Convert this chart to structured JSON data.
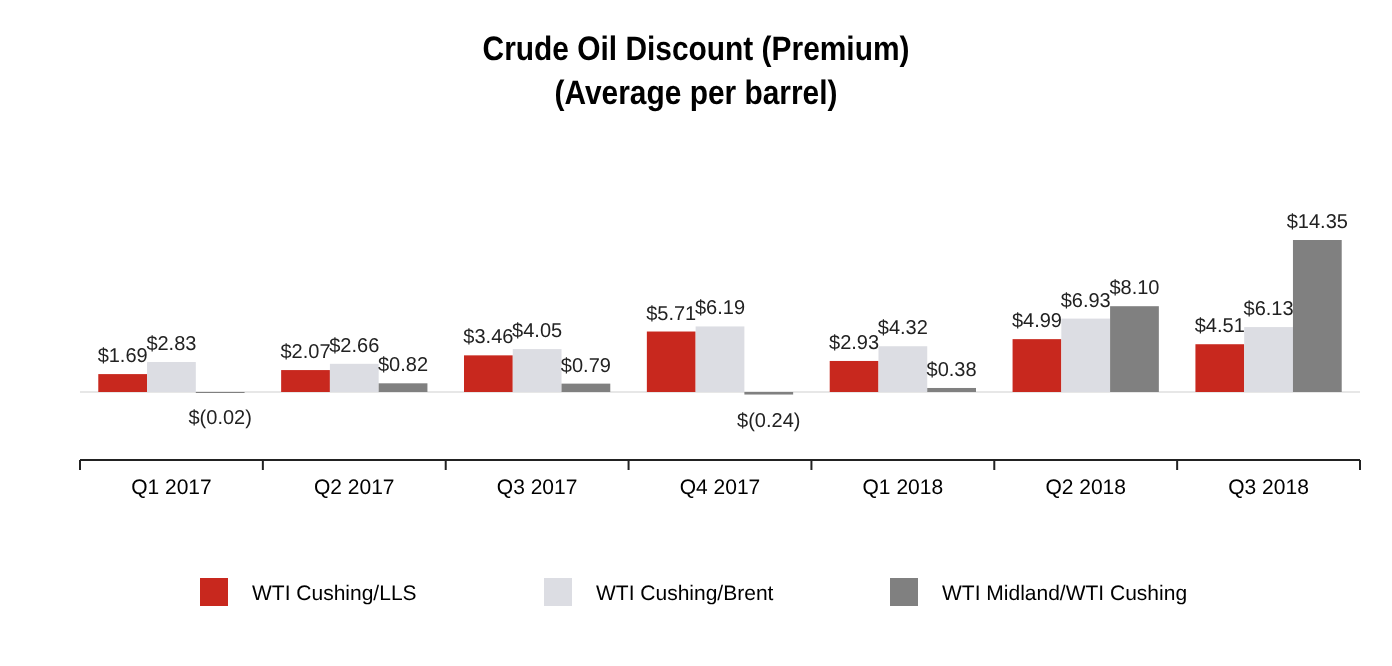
{
  "chart_data": {
    "type": "bar",
    "title": "Crude Oil Discount (Premium)",
    "subtitle": "(Average per barrel)",
    "categories": [
      "Q1 2017",
      "Q2 2017",
      "Q3 2017",
      "Q4 2017",
      "Q1 2018",
      "Q2 2018",
      "Q3 2018"
    ],
    "series": [
      {
        "name": "WTI Cushing/LLS",
        "color": "#c8281e",
        "values": [
          1.69,
          2.07,
          3.46,
          5.71,
          2.93,
          4.99,
          4.51
        ],
        "value_labels": [
          "$1.69",
          "$2.07",
          "$3.46",
          "$5.71",
          "$2.93",
          "$4.99",
          "$4.51"
        ]
      },
      {
        "name": "WTI Cushing/Brent",
        "color": "#dcdde3",
        "values": [
          2.83,
          2.66,
          4.05,
          6.19,
          4.32,
          6.93,
          6.13
        ],
        "value_labels": [
          "$2.83",
          "$2.66",
          "$4.05",
          "$6.19",
          "$4.32",
          "$6.93",
          "$6.13"
        ]
      },
      {
        "name": "WTI Midland/WTI Cushing",
        "color": "#808080",
        "values": [
          -0.02,
          0.82,
          0.79,
          -0.24,
          0.38,
          8.1,
          14.35
        ],
        "value_labels": [
          "$(0.02)",
          "$0.82",
          "$0.79",
          "$(0.24)",
          "$0.38",
          "$8.10",
          "$14.35"
        ]
      }
    ],
    "legend": "bottom"
  }
}
